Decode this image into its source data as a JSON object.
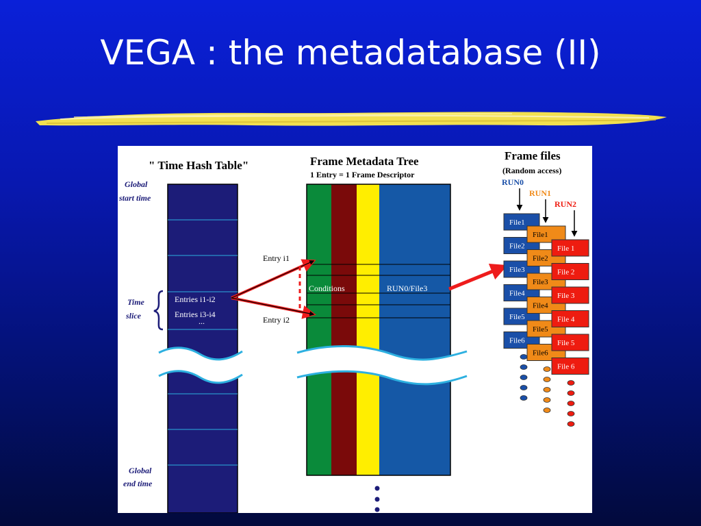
{
  "slide": {
    "title": "VEGA : the metadatabase (II)"
  },
  "diagram": {
    "hash_table": {
      "title": "\" Time Hash Table\"",
      "global_start_label": [
        "Global",
        "start time"
      ],
      "time_slice_label": [
        "Time",
        "slice"
      ],
      "global_end_label": [
        "Global",
        "end time"
      ],
      "entries": [
        "Entries i1-i2",
        "Entries i3-i4",
        "..."
      ]
    },
    "metadata_tree": {
      "title": "Frame Metadata Tree",
      "subtitle": "1 Entry = 1 Frame Descriptor",
      "entry1": "Entry i1",
      "entry2": "Entry i2",
      "conditions": "Conditions",
      "run_file": "RUN0/File3"
    },
    "frame_files": {
      "title": "Frame files",
      "subtitle": "(Random access)",
      "runs": [
        {
          "name": "RUN0",
          "color": "#1a4fa8",
          "files": [
            "File1",
            "File2",
            "File3",
            "File4",
            "File5",
            "File6"
          ]
        },
        {
          "name": "RUN1",
          "color": "#f08a18",
          "files": [
            "File1",
            "File2",
            "File3",
            "File4",
            "File5",
            "File6"
          ]
        },
        {
          "name": "RUN2",
          "color": "#ee1c10",
          "files": [
            "File 1",
            "File 2",
            "File 3",
            "File 4",
            "File 5",
            "File 6"
          ]
        }
      ]
    },
    "colors": {
      "hash_table": "#1c1c78",
      "green": "#0a8a3a",
      "darkred": "#7a0a0a",
      "yellow": "#ffee00",
      "blue": "#1558a6",
      "arrow": "#ee1c1c"
    }
  }
}
